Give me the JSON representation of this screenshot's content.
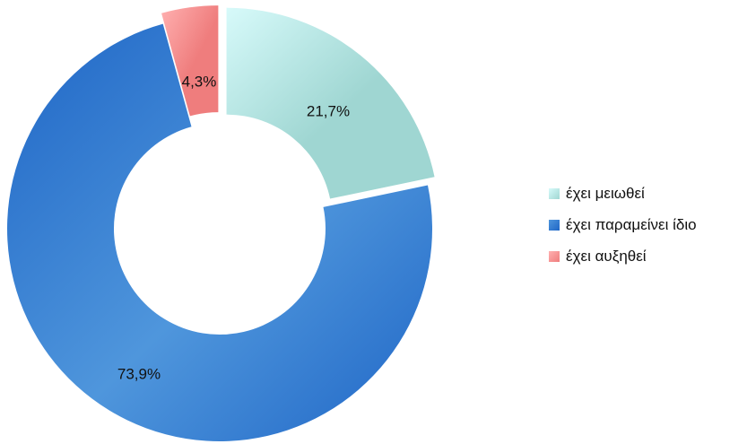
{
  "chart_data": {
    "type": "pie",
    "variant": "donut",
    "legend_position": "right",
    "series": [
      {
        "name": "έχει μειωθεί",
        "value": 21.7,
        "label": "21,7%",
        "color_light": "#d7fafa",
        "color_dark": "#9fd6d2"
      },
      {
        "name": "έχει παραμείνει ίδιο",
        "value": 73.9,
        "label": "73,9%",
        "color_light": "#4f96dc",
        "color_dark": "#1f66c6"
      },
      {
        "name": "έχει αυξηθεί",
        "value": 4.3,
        "label": "4,3%",
        "color_light": "#ffb0b0",
        "color_dark": "#ef7d7d"
      }
    ]
  }
}
